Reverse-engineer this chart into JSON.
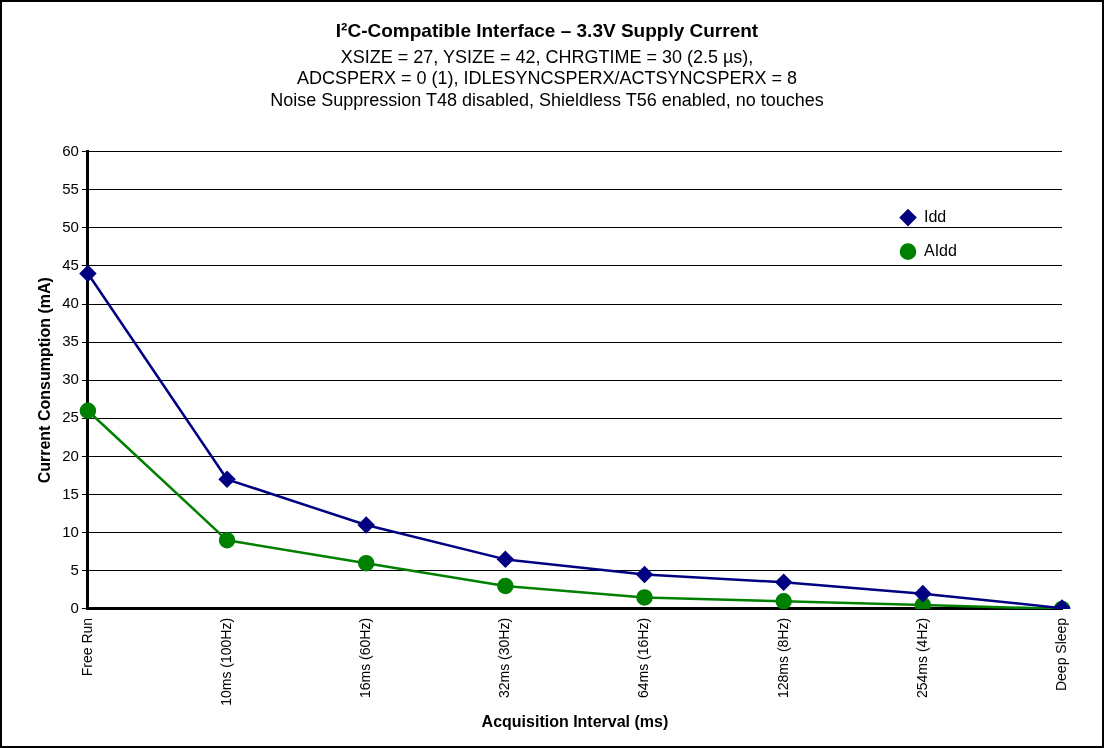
{
  "chart_data": {
    "type": "line",
    "title": "I²C-Compatible Interface – 3.3V Supply Current",
    "subtitle": "XSIZE = 27, YSIZE = 42, CHRGTIME = 30 (2.5 µs),\nADCSPERX = 0 (1), IDLESYNCSPERX/ACTSYNCSPERX = 8\nNoise Suppression T48 disabled, Shieldless T56 enabled, no touches",
    "xlabel": "Acquisition Interval (ms)",
    "ylabel": "Current Consumption (mA)",
    "categories": [
      "Free Run",
      "10ms (100Hz)",
      "16ms (60Hz)",
      "32ms (30Hz)",
      "64ms (16Hz)",
      "128ms (8Hz)",
      "254ms (4Hz)",
      "Deep Sleep"
    ],
    "series": [
      {
        "name": "Idd",
        "color": "#000080",
        "marker": "diamond",
        "values": [
          44,
          17,
          11,
          6.5,
          4.5,
          3.5,
          2,
          0.1
        ]
      },
      {
        "name": "AIdd",
        "color": "#008000",
        "marker": "circle",
        "values": [
          26,
          9,
          6,
          3,
          1.5,
          1,
          0.5,
          0
        ]
      }
    ],
    "ylim": [
      0,
      60
    ],
    "yticks": [
      0,
      5,
      10,
      15,
      20,
      25,
      30,
      35,
      40,
      45,
      50,
      55,
      60
    ],
    "grid": "y",
    "legend": "top right",
    "line_style": "solid"
  }
}
